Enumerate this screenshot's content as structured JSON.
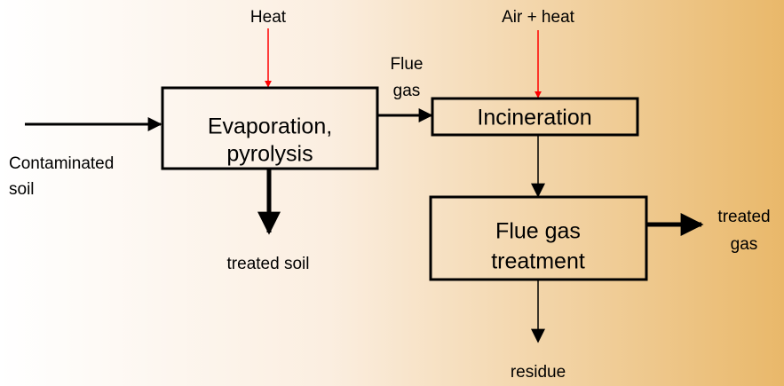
{
  "nodes": [
    {
      "lines": [
        "Evaporation,",
        "pyrolysis"
      ]
    },
    {
      "lines": [
        "Incineration"
      ]
    },
    {
      "lines": [
        "Flue gas",
        "treatment"
      ]
    }
  ],
  "labels": {
    "heat": "Heat",
    "air_heat": "Air + heat",
    "flue_gas": [
      "Flue",
      "gas"
    ],
    "input": [
      "Contaminated",
      "soil"
    ],
    "treated_soil": "treated soil",
    "treated_gas": [
      "treated",
      "gas"
    ],
    "residue": "residue"
  }
}
